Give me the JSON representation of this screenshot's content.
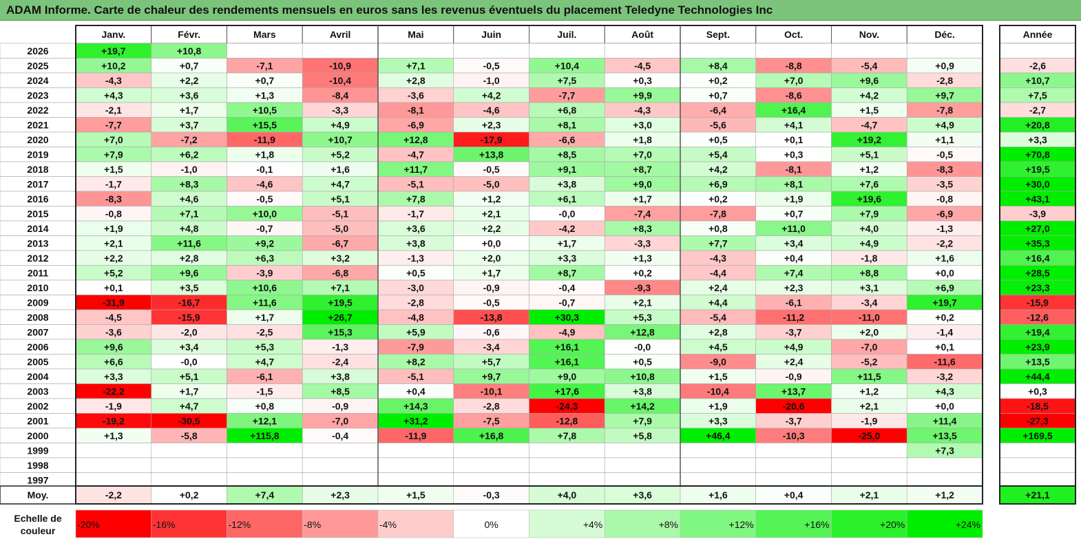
{
  "title": "ADAM Informe. Carte de chaleur des rendements mensuels en euros sans les revenus éventuels du placement Teledyne Technologies Inc",
  "chart_data": {
    "type": "heatmap",
    "title": "ADAM Informe. Carte de chaleur des rendements mensuels en euros sans les revenus éventuels du placement Teledyne Technologies Inc",
    "columns": [
      "Janv.",
      "Févr.",
      "Mars",
      "Avril",
      "Mai",
      "Juin",
      "Juil.",
      "Août",
      "Sept.",
      "Oct.",
      "Nov.",
      "Déc."
    ],
    "year_column_label": "Année",
    "rows": [
      {
        "year": "2026",
        "months": [
          "+19,7",
          "+10,8",
          "",
          "",
          "",
          "",
          "",
          "",
          "",
          "",
          "",
          ""
        ],
        "annual": ""
      },
      {
        "year": "2025",
        "months": [
          "+10,2",
          "+0,7",
          "-7,1",
          "-10,9",
          "+7,1",
          "-0,5",
          "+10,4",
          "-4,5",
          "+8,4",
          "-8,8",
          "-5,4",
          "+0,9"
        ],
        "annual": "-2,6"
      },
      {
        "year": "2024",
        "months": [
          "-4,3",
          "+2,2",
          "+0,7",
          "-10,4",
          "+2,8",
          "-1,0",
          "+7,5",
          "+0,3",
          "+0,2",
          "+7,0",
          "+9,6",
          "-2,8"
        ],
        "annual": "+10,7"
      },
      {
        "year": "2023",
        "months": [
          "+4,3",
          "+3,6",
          "+1,3",
          "-8,4",
          "-3,6",
          "+4,2",
          "-7,7",
          "+9,9",
          "+0,7",
          "-8,6",
          "+4,2",
          "+9,7"
        ],
        "annual": "+7,5"
      },
      {
        "year": "2022",
        "months": [
          "-2,1",
          "+1,7",
          "+10,5",
          "-3,3",
          "-8,1",
          "-4,6",
          "+6,8",
          "-4,3",
          "-6,4",
          "+16,4",
          "+1,5",
          "-7,8"
        ],
        "annual": "-2,7"
      },
      {
        "year": "2021",
        "months": [
          "-7,7",
          "+3,7",
          "+15,5",
          "+4,9",
          "-6,9",
          "+2,3",
          "+8,1",
          "+3,0",
          "-5,6",
          "+4,1",
          "-4,7",
          "+4,9"
        ],
        "annual": "+20,8"
      },
      {
        "year": "2020",
        "months": [
          "+7,0",
          "-7,2",
          "-11,9",
          "+10,7",
          "+12,8",
          "-17,9",
          "-6,6",
          "+1,8",
          "+0,5",
          "+0,1",
          "+19,2",
          "+1,1"
        ],
        "annual": "+3,3"
      },
      {
        "year": "2019",
        "months": [
          "+7,9",
          "+6,2",
          "+1,8",
          "+5,2",
          "-4,7",
          "+13,8",
          "+8,5",
          "+7,0",
          "+5,4",
          "+0,3",
          "+5,1",
          "-0,5"
        ],
        "annual": "+70,8"
      },
      {
        "year": "2018",
        "months": [
          "+1,5",
          "-1,0",
          "-0,1",
          "+1,6",
          "+11,7",
          "-0,5",
          "+9,1",
          "+8,7",
          "+4,2",
          "-8,1",
          "+1,2",
          "-8,3"
        ],
        "annual": "+19,5"
      },
      {
        "year": "2017",
        "months": [
          "-1,7",
          "+8,3",
          "-4,6",
          "+4,7",
          "-5,1",
          "-5,0",
          "+3,8",
          "+9,0",
          "+6,9",
          "+8,1",
          "+7,6",
          "-3,5"
        ],
        "annual": "+30,0"
      },
      {
        "year": "2016",
        "months": [
          "-8,3",
          "+4,6",
          "-0,5",
          "+5,1",
          "+7,8",
          "+1,2",
          "+6,1",
          "+1,7",
          "+0,2",
          "+1,9",
          "+19,6",
          "-0,8"
        ],
        "annual": "+43,1"
      },
      {
        "year": "2015",
        "months": [
          "-0,8",
          "+7,1",
          "+10,0",
          "-5,1",
          "-1,7",
          "+2,1",
          "-0,0",
          "-7,4",
          "-7,8",
          "+0,7",
          "+7,9",
          "-6,9"
        ],
        "annual": "-3,9"
      },
      {
        "year": "2014",
        "months": [
          "+1,9",
          "+4,8",
          "-0,7",
          "-5,0",
          "+3,6",
          "+2,2",
          "-4,2",
          "+8,3",
          "+0,8",
          "+11,0",
          "+4,0",
          "-1,3"
        ],
        "annual": "+27,0"
      },
      {
        "year": "2013",
        "months": [
          "+2,1",
          "+11,6",
          "+9,2",
          "-6,7",
          "+3,8",
          "+0,0",
          "+1,7",
          "-3,3",
          "+7,7",
          "+3,4",
          "+4,9",
          "-2,2"
        ],
        "annual": "+35,3"
      },
      {
        "year": "2012",
        "months": [
          "+2,2",
          "+2,8",
          "+6,3",
          "+3,2",
          "-1,3",
          "+2,0",
          "+3,3",
          "+1,3",
          "-4,3",
          "+0,4",
          "-1,8",
          "+1,6"
        ],
        "annual": "+16,4"
      },
      {
        "year": "2011",
        "months": [
          "+5,2",
          "+9,6",
          "-3,9",
          "-6,8",
          "+0,5",
          "+1,7",
          "+8,7",
          "+0,2",
          "-4,4",
          "+7,4",
          "+8,8",
          "+0,0"
        ],
        "annual": "+28,5"
      },
      {
        "year": "2010",
        "months": [
          "+0,1",
          "+3,5",
          "+10,6",
          "+7,1",
          "-3,0",
          "-0,9",
          "-0,4",
          "-9,3",
          "+2,4",
          "+2,3",
          "+3,1",
          "+6,9"
        ],
        "annual": "+23,3"
      },
      {
        "year": "2009",
        "months": [
          "-31,9",
          "-16,7",
          "+11,6",
          "+19,5",
          "-2,8",
          "-0,5",
          "-0,7",
          "+2,1",
          "+4,4",
          "-6,1",
          "-3,4",
          "+19,7"
        ],
        "annual": "-15,9"
      },
      {
        "year": "2008",
        "months": [
          "-4,5",
          "-15,9",
          "+1,7",
          "+26,7",
          "-4,8",
          "-13,8",
          "+30,3",
          "+5,3",
          "-5,4",
          "-11,2",
          "-11,0",
          "+0,2"
        ],
        "annual": "-12,6"
      },
      {
        "year": "2007",
        "months": [
          "-3,6",
          "-2,0",
          "-2,5",
          "+15,3",
          "+5,9",
          "-0,6",
          "-4,9",
          "+12,8",
          "+2,8",
          "-3,7",
          "+2,0",
          "-1,4"
        ],
        "annual": "+19,4"
      },
      {
        "year": "2006",
        "months": [
          "+9,6",
          "+3,4",
          "+5,3",
          "-1,3",
          "-7,9",
          "-3,4",
          "+16,1",
          "-0,0",
          "+4,5",
          "+4,9",
          "-7,0",
          "+0,1"
        ],
        "annual": "+23,9"
      },
      {
        "year": "2005",
        "months": [
          "+6,6",
          "-0,0",
          "+4,7",
          "-2,4",
          "+8,2",
          "+5,7",
          "+16,1",
          "+0,5",
          "-9,0",
          "+2,4",
          "-5,2",
          "-11,6"
        ],
        "annual": "+13,5"
      },
      {
        "year": "2004",
        "months": [
          "+3,3",
          "+5,1",
          "-6,1",
          "+3,8",
          "-5,1",
          "+9,7",
          "+9,0",
          "+10,8",
          "+1,5",
          "-0,9",
          "+11,5",
          "-3,2"
        ],
        "annual": "+44,4"
      },
      {
        "year": "2003",
        "months": [
          "-22,2",
          "+1,7",
          "-1,5",
          "+8,5",
          "+0,4",
          "-10,1",
          "+17,6",
          "+3,8",
          "-10,4",
          "+13,7",
          "+1,2",
          "+4,3"
        ],
        "annual": "+0,3"
      },
      {
        "year": "2002",
        "months": [
          "-1,9",
          "+4,7",
          "+0,8",
          "-0,9",
          "+14,3",
          "-2,8",
          "-24,3",
          "+14,2",
          "+1,9",
          "-20,6",
          "+2,1",
          "+0,0"
        ],
        "annual": "-18,5"
      },
      {
        "year": "2001",
        "months": [
          "-19,2",
          "-30,5",
          "+12,1",
          "-7,0",
          "+31,2",
          "-7,5",
          "-12,8",
          "+7,9",
          "+3,3",
          "-3,7",
          "-1,9",
          "+11,4"
        ],
        "annual": "-27,3"
      },
      {
        "year": "2000",
        "months": [
          "+1,3",
          "-5,8",
          "+115,8",
          "-0,4",
          "-11,9",
          "+16,8",
          "+7,8",
          "+5,8",
          "+46,4",
          "-10,3",
          "-25,0",
          "+13,5"
        ],
        "annual": "+169,5"
      },
      {
        "year": "1999",
        "months": [
          "",
          "",
          "",
          "",
          "",
          "",
          "",
          "",
          "",
          "",
          "",
          "+7,3"
        ],
        "annual": ""
      },
      {
        "year": "1998",
        "months": [
          "",
          "",
          "",
          "",
          "",
          "",
          "",
          "",
          "",
          "",
          "",
          ""
        ],
        "annual": ""
      },
      {
        "year": "1997",
        "months": [
          "",
          "",
          "",
          "",
          "",
          "",
          "",
          "",
          "",
          "",
          "",
          ""
        ],
        "annual": ""
      }
    ],
    "average": {
      "label": "Moy.",
      "months": [
        "-2,2",
        "+0,2",
        "+7,4",
        "+2,3",
        "+1,5",
        "-0,3",
        "+4,0",
        "+3,6",
        "+1,6",
        "+0,4",
        "+2,1",
        "+1,2"
      ],
      "annual": "+21,1"
    },
    "scale": {
      "label_line1": "Echelle de",
      "label_line2": "couleur",
      "items": [
        {
          "label": "-20%",
          "value": -20
        },
        {
          "label": "-16%",
          "value": -16
        },
        {
          "label": "-12%",
          "value": -12
        },
        {
          "label": "-8%",
          "value": -8
        },
        {
          "label": "-4%",
          "value": -4
        },
        {
          "label": "0%",
          "value": 0
        },
        {
          "label": "+4%",
          "value": 4
        },
        {
          "label": "+8%",
          "value": 8
        },
        {
          "label": "+12%",
          "value": 12
        },
        {
          "label": "+16%",
          "value": 16
        },
        {
          "label": "+20%",
          "value": 20
        },
        {
          "label": "+24%",
          "value": 24
        }
      ]
    },
    "colors": {
      "negative": "#ff0000",
      "positive": "#00ee00",
      "neutral": "#ffffff",
      "title_bar": "#7cc47c"
    }
  }
}
